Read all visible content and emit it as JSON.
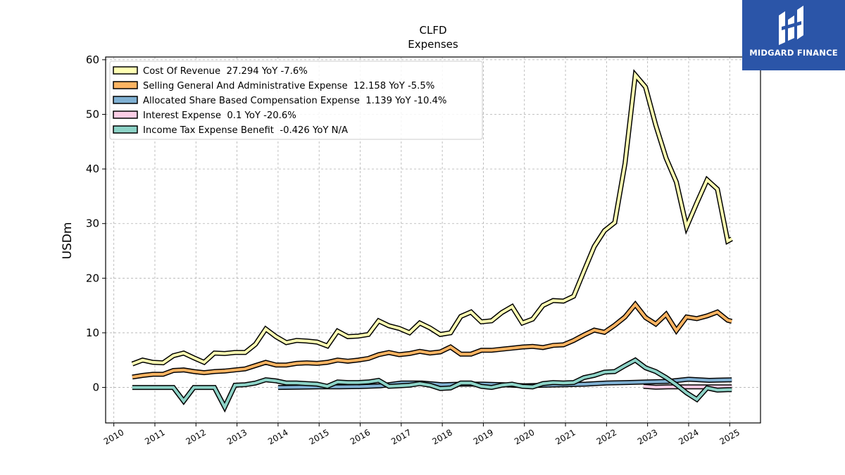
{
  "chart_data": {
    "type": "line",
    "title": "CLFD",
    "subtitle": "Expenses",
    "ylabel": "USDm",
    "xlabel": "",
    "ylim": [
      -6.5,
      60.5
    ],
    "xlim": [
      2009.8,
      2025.75
    ],
    "yticks": [
      0,
      10,
      20,
      30,
      40,
      50,
      60
    ],
    "xticks": [
      "2010",
      "2011",
      "2012",
      "2013",
      "2014",
      "2015",
      "2016",
      "2017",
      "2018",
      "2019",
      "2020",
      "2021",
      "2022",
      "2023",
      "2024",
      "2025"
    ],
    "grid": true,
    "legend_position": "top-left",
    "series": [
      {
        "name": "Cost Of Revenue  27.294 YoY -7.6%",
        "color": "#ffffb3",
        "x": [
          2010.45,
          2010.7,
          2010.95,
          2011.2,
          2011.45,
          2011.7,
          2011.95,
          2012.2,
          2012.45,
          2012.7,
          2012.95,
          2013.2,
          2013.45,
          2013.7,
          2013.95,
          2014.2,
          2014.45,
          2014.7,
          2014.95,
          2015.2,
          2015.45,
          2015.7,
          2015.95,
          2016.2,
          2016.45,
          2016.7,
          2016.95,
          2017.2,
          2017.45,
          2017.7,
          2017.95,
          2018.2,
          2018.45,
          2018.7,
          2018.95,
          2019.2,
          2019.45,
          2019.7,
          2019.95,
          2020.2,
          2020.45,
          2020.7,
          2020.95,
          2021.2,
          2021.45,
          2021.7,
          2021.95,
          2022.2,
          2022.45,
          2022.7,
          2022.95,
          2023.2,
          2023.45,
          2023.7,
          2023.95,
          2024.2,
          2024.45,
          2024.7,
          2024.95,
          2025.05
        ],
        "values": [
          4.3,
          5.0,
          4.6,
          4.5,
          5.8,
          6.3,
          5.4,
          4.6,
          6.3,
          6.2,
          6.4,
          6.4,
          7.9,
          10.7,
          9.3,
          8.2,
          8.6,
          8.5,
          8.3,
          7.6,
          10.3,
          9.3,
          9.4,
          9.7,
          12.2,
          11.3,
          10.8,
          10.0,
          11.8,
          10.9,
          9.7,
          10.0,
          13.0,
          13.8,
          12.0,
          12.2,
          13.7,
          14.8,
          11.8,
          12.5,
          15.0,
          15.9,
          15.8,
          16.7,
          21.3,
          25.8,
          28.7,
          30.2,
          41.0,
          57.2,
          55.0,
          48.0,
          42.0,
          37.6,
          29.4,
          33.8,
          38.0,
          36.3,
          26.8,
          27.2
        ]
      },
      {
        "name": "Selling General And Administrative Expense  12.158 YoY -5.5%",
        "color": "#fdb462",
        "x": [
          2010.45,
          2010.7,
          2010.95,
          2011.2,
          2011.45,
          2011.7,
          2011.95,
          2012.2,
          2012.45,
          2012.7,
          2012.95,
          2013.2,
          2013.45,
          2013.7,
          2013.95,
          2014.2,
          2014.45,
          2014.7,
          2014.95,
          2015.2,
          2015.45,
          2015.7,
          2015.95,
          2016.2,
          2016.45,
          2016.7,
          2016.95,
          2017.2,
          2017.45,
          2017.7,
          2017.95,
          2018.2,
          2018.45,
          2018.7,
          2018.95,
          2019.2,
          2019.45,
          2019.7,
          2019.95,
          2020.2,
          2020.45,
          2020.7,
          2020.95,
          2021.2,
          2021.45,
          2021.7,
          2021.95,
          2022.2,
          2022.45,
          2022.7,
          2022.95,
          2023.2,
          2023.45,
          2023.7,
          2023.95,
          2024.2,
          2024.45,
          2024.7,
          2024.95,
          2025.05
        ],
        "values": [
          1.9,
          2.2,
          2.4,
          2.4,
          3.1,
          3.2,
          2.9,
          2.7,
          2.9,
          3.0,
          3.2,
          3.4,
          4.0,
          4.6,
          4.1,
          4.1,
          4.4,
          4.5,
          4.4,
          4.6,
          5.0,
          4.8,
          5.0,
          5.3,
          6.0,
          6.4,
          6.0,
          6.2,
          6.6,
          6.3,
          6.5,
          7.4,
          6.1,
          6.1,
          6.8,
          6.8,
          7.0,
          7.2,
          7.4,
          7.5,
          7.3,
          7.7,
          7.8,
          8.6,
          9.6,
          10.5,
          10.1,
          11.4,
          12.9,
          15.2,
          12.8,
          11.6,
          13.4,
          10.4,
          12.9,
          12.6,
          13.1,
          13.8,
          12.3,
          12.1
        ]
      },
      {
        "name": "Allocated Share Based Compensation Expense  1.139 YoY -10.4%",
        "color": "#80b1d3",
        "x": [
          2014.0,
          2014.5,
          2015.0,
          2015.5,
          2016.0,
          2016.5,
          2017.0,
          2017.5,
          2018.0,
          2018.5,
          2019.0,
          2019.5,
          2020.0,
          2020.5,
          2021.0,
          2021.5,
          2022.0,
          2022.5,
          2023.0,
          2023.5,
          2024.0,
          2024.5,
          2025.05
        ],
        "values": [
          0.0,
          0.05,
          0.1,
          0.1,
          0.15,
          0.3,
          0.8,
          0.8,
          0.5,
          0.6,
          0.6,
          0.5,
          0.3,
          0.4,
          0.5,
          0.6,
          0.8,
          0.9,
          1.0,
          1.1,
          1.5,
          1.3,
          1.4
        ]
      },
      {
        "name": "Interest Expense  0.1 YoY -20.6%",
        "color": "#fccde5",
        "x": [
          2022.9,
          2023.2,
          2023.5,
          2023.8,
          2024.1,
          2024.4,
          2024.7,
          2025.05
        ],
        "values": [
          0.2,
          0.05,
          0.1,
          0.1,
          0.1,
          0.1,
          0.1,
          0.1
        ]
      },
      {
        "name": "Income Tax Expense Benefit  -0.426 YoY N/A",
        "color": "#8dd3c7",
        "x": [
          2010.45,
          2010.7,
          2010.95,
          2011.2,
          2011.45,
          2011.7,
          2011.95,
          2012.2,
          2012.45,
          2012.7,
          2012.95,
          2013.2,
          2013.45,
          2013.7,
          2013.95,
          2014.2,
          2014.45,
          2014.7,
          2014.95,
          2015.2,
          2015.45,
          2015.7,
          2015.95,
          2016.2,
          2016.45,
          2016.7,
          2016.95,
          2017.2,
          2017.45,
          2017.7,
          2017.95,
          2018.2,
          2018.45,
          2018.7,
          2018.95,
          2019.2,
          2019.45,
          2019.7,
          2019.95,
          2020.2,
          2020.45,
          2020.7,
          2020.95,
          2021.2,
          2021.45,
          2021.7,
          2021.95,
          2022.2,
          2022.45,
          2022.7,
          2022.95,
          2023.2,
          2023.45,
          2023.7,
          2023.95,
          2024.2,
          2024.45,
          2024.7,
          2024.95,
          2025.05
        ],
        "values": [
          0.0,
          0.0,
          0.0,
          0.0,
          0.0,
          -2.5,
          0.0,
          0.0,
          0.0,
          -3.6,
          0.4,
          0.5,
          0.8,
          1.4,
          1.2,
          0.8,
          0.8,
          0.7,
          0.6,
          0.2,
          1.0,
          0.9,
          0.9,
          1.0,
          1.3,
          0.2,
          0.3,
          0.4,
          0.7,
          0.4,
          -0.2,
          -0.1,
          0.8,
          0.8,
          0.2,
          0.0,
          0.4,
          0.6,
          0.2,
          0.1,
          0.7,
          0.9,
          0.8,
          0.9,
          1.8,
          2.2,
          2.8,
          2.9,
          4.0,
          5.0,
          3.6,
          2.9,
          1.8,
          0.5,
          -1.0,
          -2.2,
          -0.1,
          -0.5,
          -0.4,
          -0.4
        ]
      }
    ]
  },
  "brand": {
    "name": "MIDGARD FINANCE",
    "logo_icon": "midgard-monogram-icon",
    "bg_color": "#2b55a8"
  }
}
